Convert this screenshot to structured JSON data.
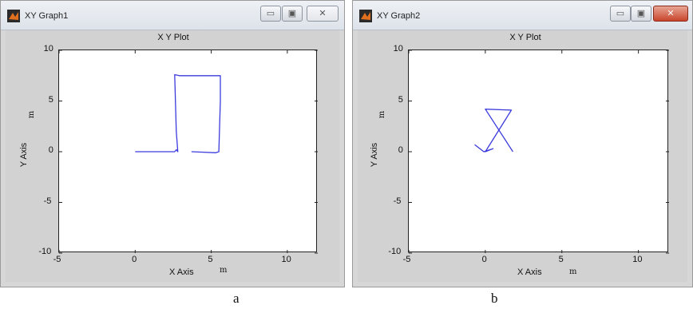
{
  "windows": [
    {
      "title": "XY Graph1",
      "caption": "a",
      "plot": {
        "title": "X Y Plot",
        "xlabel": "X Axis",
        "xunit": "m",
        "ylabel": "Y Axis",
        "yunit": "m",
        "xticks": [
          "-5",
          "0",
          "5",
          "10"
        ],
        "yticks": [
          "10",
          "5",
          "0",
          "-5",
          "-10"
        ]
      },
      "controls": {
        "minimize": "▭",
        "maximize": "▣",
        "close": "✕"
      }
    },
    {
      "title": "XY Graph2",
      "caption": "b",
      "plot": {
        "title": "X Y Plot",
        "xlabel": "X Axis",
        "xunit": "m",
        "ylabel": "Y Axis",
        "yunit": "m",
        "xticks": [
          "-5",
          "0",
          "5",
          "10"
        ],
        "yticks": [
          "10",
          "5",
          "0",
          "-5",
          "-10"
        ]
      },
      "controls": {
        "minimize": "▭",
        "maximize": "▣",
        "close": "✕"
      }
    }
  ],
  "chart_data": [
    {
      "type": "line",
      "title": "X Y Plot",
      "xlabel": "X Axis",
      "ylabel": "Y Axis",
      "xlim": [
        -5,
        12
      ],
      "ylim": [
        -10,
        10
      ],
      "grid": false,
      "color": "#3b3bdd",
      "series": [
        {
          "x": [
            0,
            2.6,
            2.7,
            2.8,
            2.7,
            2.6,
            2.9,
            5.6,
            5.6,
            5.5,
            5.3,
            3.7
          ],
          "y": [
            0,
            0,
            0.2,
            0,
            2.0,
            7.6,
            7.5,
            7.5,
            5.0,
            0,
            -0.1,
            0
          ]
        }
      ]
    },
    {
      "type": "line",
      "title": "X Y Plot",
      "xlabel": "X Axis",
      "ylabel": "Y Axis",
      "xlim": [
        -5,
        12
      ],
      "ylim": [
        -10,
        10
      ],
      "grid": false,
      "color": "#3b3bdd",
      "series": [
        {
          "x": [
            -0.7,
            -0.1,
            0.5,
            0.0,
            1.7,
            1.7,
            0.0,
            1.8
          ],
          "y": [
            0.7,
            0.0,
            0.3,
            0.0,
            4.1,
            4.1,
            4.2,
            0.0
          ]
        }
      ]
    }
  ]
}
